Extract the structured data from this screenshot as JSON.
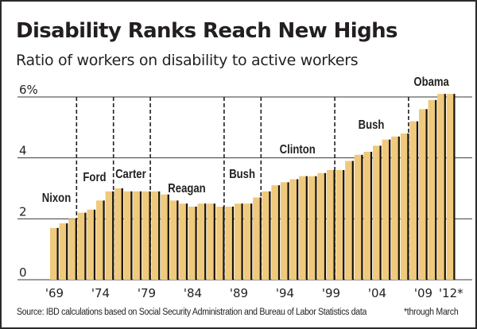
{
  "title": "Disability Ranks Reach New Highs",
  "subtitle": "Ratio of workers on disability to active workers",
  "source": "Source: IBD calculations based on Social Security Administration and Bureau of Labor Statistics data",
  "footnote": "*through March",
  "colors": {
    "bar": "#EFC97C",
    "bar_edge": "#1a1208",
    "gridline": "#3a3a3a",
    "divider": "#231f20",
    "text": "#231f20"
  },
  "chart_data": {
    "type": "bar",
    "title": "Disability Ranks Reach New Highs",
    "subtitle": "Ratio of workers on disability to active workers",
    "xlabel": "",
    "ylabel": "",
    "ylim": [
      0,
      6
    ],
    "yticks": [
      0,
      2,
      4,
      6
    ],
    "ytick_labels": [
      "0",
      "2",
      "4",
      "6%"
    ],
    "grid": true,
    "categories": [
      "1969",
      "1970",
      "1971",
      "1972",
      "1973",
      "1974",
      "1975",
      "1976",
      "1977",
      "1978",
      "1979",
      "1980",
      "1981",
      "1982",
      "1983",
      "1984",
      "1985",
      "1986",
      "1987",
      "1988",
      "1989",
      "1990",
      "1991",
      "1992",
      "1993",
      "1994",
      "1995",
      "1996",
      "1997",
      "1998",
      "1999",
      "2000",
      "2001",
      "2002",
      "2003",
      "2004",
      "2005",
      "2006",
      "2007",
      "2008",
      "2009",
      "2010",
      "2011",
      "2012*"
    ],
    "xtick_labels": [
      {
        "index": 0,
        "label": "'69"
      },
      {
        "index": 5,
        "label": "'74"
      },
      {
        "index": 10,
        "label": "'79"
      },
      {
        "index": 15,
        "label": "'84"
      },
      {
        "index": 20,
        "label": "'89"
      },
      {
        "index": 25,
        "label": "'94"
      },
      {
        "index": 30,
        "label": "'99"
      },
      {
        "index": 35,
        "label": "'04"
      },
      {
        "index": 40,
        "label": "'09"
      },
      {
        "index": 43,
        "label": "'12*"
      }
    ],
    "values": [
      1.7,
      1.85,
      2.0,
      2.2,
      2.3,
      2.6,
      2.9,
      3.0,
      2.9,
      2.9,
      2.9,
      2.9,
      2.8,
      2.6,
      2.5,
      2.4,
      2.5,
      2.5,
      2.4,
      2.4,
      2.5,
      2.5,
      2.7,
      2.9,
      3.1,
      3.2,
      3.3,
      3.4,
      3.4,
      3.5,
      3.6,
      3.6,
      3.9,
      4.1,
      4.2,
      4.4,
      4.6,
      4.7,
      4.8,
      5.2,
      5.6,
      5.9,
      6.1,
      6.1
    ],
    "administrations": [
      {
        "name": "Nixon",
        "start_index": 0,
        "end_index": 2
      },
      {
        "name": "Ford",
        "start_index": 3,
        "end_index": 6
      },
      {
        "name": "Carter",
        "start_index": 7,
        "end_index": 10
      },
      {
        "name": "Reagan",
        "start_index": 11,
        "end_index": 18
      },
      {
        "name": "Bush",
        "start_index": 19,
        "end_index": 22
      },
      {
        "name": "Clinton",
        "start_index": 23,
        "end_index": 30
      },
      {
        "name": "Bush",
        "start_index": 31,
        "end_index": 38
      },
      {
        "name": "Obama",
        "start_index": 39,
        "end_index": 43
      }
    ]
  }
}
